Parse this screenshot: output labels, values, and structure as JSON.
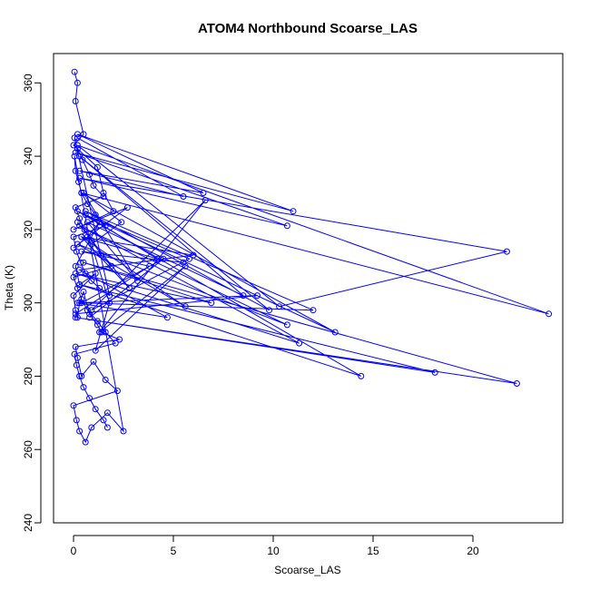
{
  "chart_data": {
    "type": "line",
    "title": "ATOM4 Northbound Scoarse_LAS",
    "xlabel": "Scoarse_LAS",
    "ylabel": "Theta (K)",
    "xlim": [
      -1.0,
      24.5
    ],
    "ylim": [
      240,
      368
    ],
    "xticks": [
      0,
      5,
      10,
      15,
      20
    ],
    "yticks": [
      240,
      260,
      280,
      300,
      320,
      340,
      360
    ],
    "grid": false,
    "series": [
      {
        "color": "#0000ff",
        "marker": "open-circle",
        "x": [
          0.05,
          0.2,
          0.1,
          0.5,
          0.0,
          1.2,
          1.5,
          2.0,
          0.0,
          2.7,
          0.0,
          0.7,
          1.3,
          0.1,
          0.3,
          1.1,
          0.0,
          0.1,
          0.2,
          0.3,
          0.5,
          0.8,
          1.2,
          1.4,
          2.3,
          0.1,
          0.2,
          0.4,
          1.0,
          1.6,
          2.2,
          0.0,
          0.15,
          0.3,
          0.6,
          0.9,
          1.7,
          2.5,
          0.05,
          0.1,
          0.25,
          0.4,
          0.7,
          1.1,
          1.6,
          0.0,
          0.15,
          0.35,
          0.6,
          0.9,
          1.3,
          1.8,
          0.05,
          0.2,
          0.45,
          0.8,
          1.0,
          1.5,
          0.1,
          0.3,
          0.55,
          0.9,
          1.4,
          1.9,
          0.0,
          0.2,
          0.4,
          0.7,
          1.2,
          1.6,
          2.1,
          0.05,
          0.15,
          0.3,
          0.5,
          0.8,
          1.1,
          1.5,
          1.7
        ],
        "y": [
          363.0,
          360.0,
          355.0,
          346.0,
          343.0,
          337.0,
          330.0,
          325.0,
          320.0,
          326.0,
          315.0,
          318.0,
          322.0,
          310.0,
          305.0,
          308.0,
          302.0,
          298.0,
          296.0,
          300.0,
          303.0,
          297.0,
          294.0,
          292.0,
          290.0,
          288.0,
          285.0,
          280.0,
          284.0,
          279.0,
          276.0,
          272.0,
          268.0,
          265.0,
          262.0,
          266.0,
          270.0,
          265.0,
          340.0,
          336.0,
          333.0,
          330.0,
          327.0,
          324.0,
          321.0,
          318.0,
          314.0,
          311.0,
          308.0,
          306.0,
          304.0,
          302.0,
          345.0,
          342.0,
          339.0,
          335.0,
          332.0,
          329.0,
          326.0,
          323.0,
          320.0,
          317.0,
          313.0,
          310.0,
          307.0,
          304.0,
          301.0,
          298.0,
          295.0,
          292.0,
          289.0,
          286.0,
          283.0,
          280.0,
          277.0,
          274.0,
          271.0,
          268.0,
          266.0
        ]
      },
      {
        "color": "#0000ff",
        "marker": "open-circle",
        "x": [
          0.2,
          5.5,
          0.3,
          6.5,
          0.2,
          11.0,
          0.1,
          10.7,
          0.3,
          21.7,
          10.3,
          0.2,
          23.8,
          0.4,
          13.1,
          0.2,
          14.4,
          0.3,
          18.1,
          0.1,
          22.2,
          0.5,
          6.9,
          0.1,
          11.3,
          0.3,
          10.7,
          0.2,
          5.6,
          0.4,
          6.0,
          0.3,
          4.7,
          0.2,
          9.2,
          0.1,
          3.8,
          0.4,
          5.5
        ],
        "y": [
          345.0,
          329.0,
          336.0,
          330.0,
          346.0,
          325.0,
          341.0,
          321.0,
          334.0,
          314.0,
          299.0,
          343.0,
          297.0,
          330.0,
          292.0,
          325.0,
          280.0,
          305.0,
          281.0,
          296.0,
          278.0,
          311.0,
          300.0,
          308.0,
          289.0,
          321.0,
          294.0,
          316.0,
          299.0,
          318.0,
          313.0,
          309.0,
          296.0,
          300.0,
          302.0,
          297.0,
          310.0,
          314.0,
          311.0
        ]
      },
      {
        "color": "#0000ff",
        "marker": "open-circle",
        "x": [
          0.8,
          4.5,
          0.4,
          12.0,
          0.6,
          9.8,
          0.3,
          8.5,
          0.7,
          3.2,
          0.5,
          2.4,
          0.9,
          1.8,
          1.1,
          5.6,
          1.3,
          6.6,
          0.9,
          5.8,
          0.6,
          4.2,
          0.4,
          2.8,
          0.2
        ],
        "y": [
          296.0,
          312.0,
          300.0,
          298.0,
          325.0,
          298.0,
          340.0,
          302.0,
          322.0,
          306.0,
          330.0,
          322.0,
          316.0,
          300.0,
          287.0,
          310.0,
          292.0,
          328.0,
          298.0,
          312.0,
          324.0,
          312.0,
          318.0,
          304.0,
          322.0
        ]
      }
    ]
  }
}
